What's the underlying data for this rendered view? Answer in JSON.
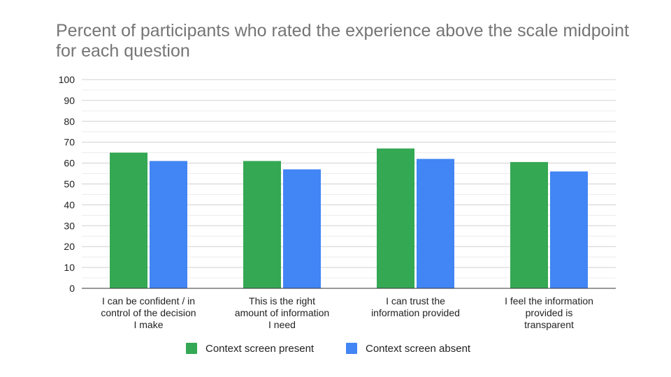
{
  "chart_data": {
    "type": "bar",
    "title": "Percent of participants who rated the experience above the scale midpoint for each question",
    "categories": [
      [
        "I can be confident / in",
        "control of the decision",
        "I make"
      ],
      [
        "This is the right",
        "amount of information",
        "I need"
      ],
      [
        "I can trust the",
        "information provided"
      ],
      [
        "I feel the information",
        "provided is",
        "transparent"
      ]
    ],
    "series": [
      {
        "name": "Context screen present",
        "color": "#34a853",
        "values": [
          65,
          61,
          67,
          60.5
        ]
      },
      {
        "name": "Context screen absent",
        "color": "#4285f4",
        "values": [
          61,
          57,
          62,
          56
        ]
      }
    ],
    "ylim": [
      0,
      100
    ],
    "yticks": [
      0,
      10,
      20,
      30,
      40,
      50,
      60,
      70,
      80,
      90,
      100
    ],
    "grid": true,
    "legend": "bottom"
  }
}
